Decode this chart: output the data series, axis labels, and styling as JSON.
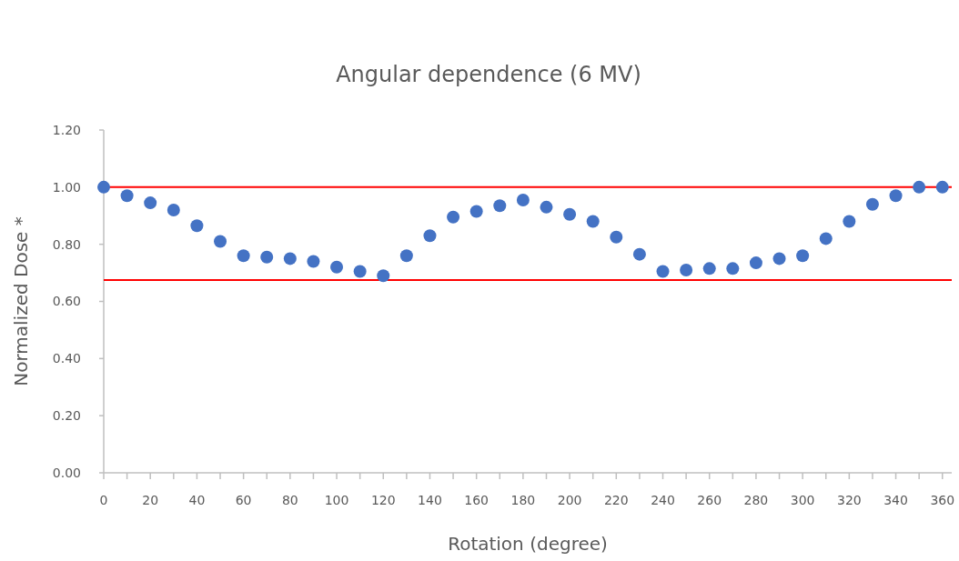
{
  "chart_data": {
    "type": "scatter",
    "title": "Angular dependence (6 MV)",
    "xlabel": "Rotation (degree)",
    "ylabel": "Normalized Dose *",
    "x": [
      0,
      10,
      20,
      30,
      40,
      50,
      60,
      70,
      80,
      90,
      100,
      110,
      120,
      130,
      140,
      150,
      160,
      170,
      180,
      190,
      200,
      210,
      220,
      230,
      240,
      250,
      260,
      270,
      280,
      290,
      300,
      310,
      320,
      330,
      340,
      350,
      360
    ],
    "series": [
      {
        "color": "#4472c4",
        "values": [
          1.0,
          0.97,
          0.945,
          0.92,
          0.865,
          0.81,
          0.76,
          0.755,
          0.75,
          0.74,
          0.72,
          0.705,
          0.69,
          0.76,
          0.83,
          0.895,
          0.915,
          0.935,
          0.955,
          0.93,
          0.905,
          0.88,
          0.825,
          0.765,
          0.705,
          0.71,
          0.715,
          0.715,
          0.735,
          0.75,
          0.76,
          0.82,
          0.88,
          0.94,
          0.97,
          1.0,
          1.0
        ]
      }
    ],
    "marker": "circle",
    "xlim": [
      0,
      364
    ],
    "ylim": [
      0,
      1.2
    ],
    "xticks": [
      0,
      {
        "value": 10,
        "label": null
      },
      20,
      {
        "value": 30,
        "label": null
      },
      40,
      {
        "value": 50,
        "label": null
      },
      60,
      {
        "value": 70,
        "label": null
      },
      80,
      {
        "value": 90,
        "label": null
      },
      100,
      {
        "value": 110,
        "label": null
      },
      120,
      {
        "value": 130,
        "label": null
      },
      140,
      {
        "value": 150,
        "label": null
      },
      160,
      {
        "value": 170,
        "label": null
      },
      180,
      {
        "value": 190,
        "label": null
      },
      200,
      {
        "value": 210,
        "label": null
      },
      220,
      {
        "value": 230,
        "label": null
      },
      240,
      {
        "value": 250,
        "label": null
      },
      260,
      {
        "value": 270,
        "label": null
      },
      280,
      {
        "value": 290,
        "label": null
      },
      300,
      {
        "value": 310,
        "label": null
      },
      320,
      {
        "value": 330,
        "label": null
      },
      340,
      {
        "value": 350,
        "label": null
      },
      360
    ],
    "yticks": [
      {
        "value": 0,
        "label": "0.00"
      },
      {
        "value": 0.2,
        "label": "0.20"
      },
      {
        "value": 0.4,
        "label": "0.40"
      },
      {
        "value": 0.6,
        "label": "0.60"
      },
      {
        "value": 0.8,
        "label": "0.80"
      },
      {
        "value": 1.0,
        "label": "1.00"
      },
      {
        "value": 1.2,
        "label": "1.20"
      }
    ],
    "ref_lines": [
      {
        "axis": "y",
        "value": 1.0,
        "color": "#ff0000"
      },
      {
        "axis": "y",
        "value": 0.675,
        "color": "#ff0000"
      }
    ],
    "grid": false
  }
}
